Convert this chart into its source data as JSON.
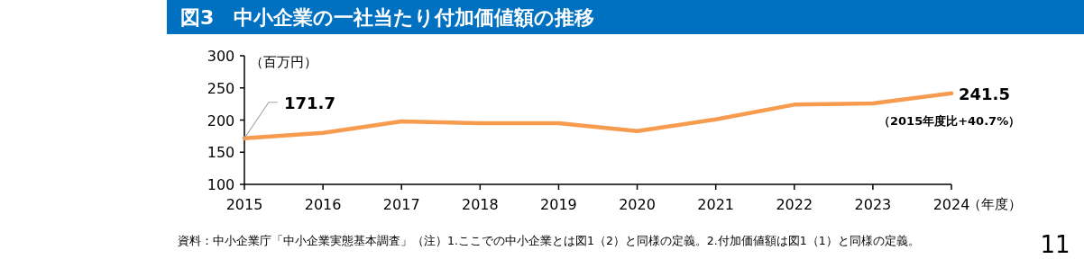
{
  "chart_data": {
    "type": "line",
    "title": "図3　中小企業の一社当たり付加価値額の推移",
    "ylabel": "（百万円）",
    "xlabel": "（年度）",
    "categories": [
      "2015",
      "2016",
      "2017",
      "2018",
      "2019",
      "2020",
      "2021",
      "2022",
      "2023",
      "2024"
    ],
    "series": [
      {
        "color": "#f79b4f",
        "values": [
          171.7,
          180,
          198,
          195,
          195,
          183,
          201,
          224,
          226,
          241.5
        ],
        "value_labels": [
          "171.7",
          null,
          null,
          null,
          null,
          null,
          null,
          null,
          null,
          "241.5"
        ]
      }
    ],
    "ylim": [
      100,
      300
    ],
    "yticks": [
      100,
      150,
      200,
      250,
      300
    ],
    "grid": false,
    "marker": "none",
    "line_style": "solid",
    "annotations": [
      {
        "text": "（2015年度比+40.7%）",
        "x": "2024",
        "y": 241.5
      },
      "資料：中小企業庁「中小企業実態基本調査」（注）1.ここでの中小企業とは図1（2）と同様の定義。2.付加価値額は図1（1）と同様の定義。",
      "11"
    ]
  }
}
